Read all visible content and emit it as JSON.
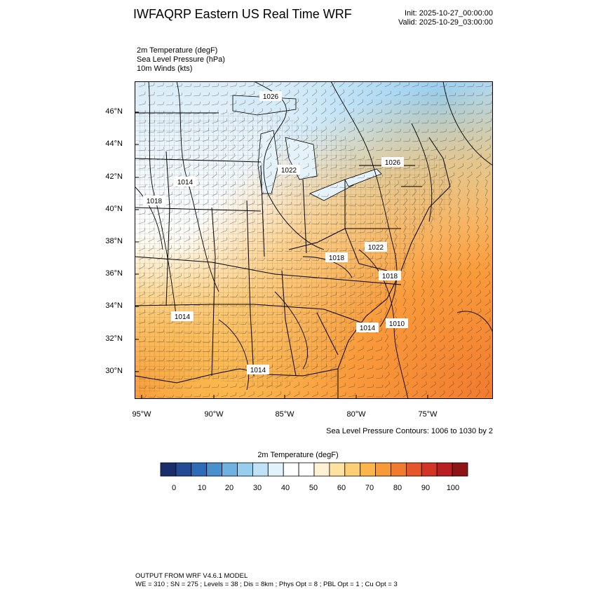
{
  "title": "IWFAQRP Eastern US Real Time WRF",
  "init": "Init: 2025-10-27_00:00:00",
  "valid": "Valid: 2025-10-29_03:00:00",
  "fields": {
    "line1": "2m Temperature   (degF)",
    "line2": "Sea Level Pressure   (hPa)",
    "line3": "10m Winds   (kts)"
  },
  "lat_labels": [
    "46°N",
    "44°N",
    "42°N",
    "40°N",
    "38°N",
    "36°N",
    "34°N",
    "32°N",
    "30°N"
  ],
  "lon_labels": [
    "95°W",
    "90°W",
    "85°W",
    "80°W",
    "75°W"
  ],
  "pressure_labels": [
    "1026",
    "1022",
    "1026",
    "1014",
    "1018",
    "1022",
    "1018",
    "1018",
    "1014",
    "1014",
    "1010",
    "1014"
  ],
  "contour_note": "Sea Level Pressure Contours: 1006 to 1030 by 2",
  "colorbar": {
    "title": "2m Temperature  (degF)",
    "labels": [
      "0",
      "10",
      "20",
      "30",
      "40",
      "50",
      "60",
      "70",
      "80",
      "90",
      "100"
    ],
    "colors": [
      "#1a2e6b",
      "#234c94",
      "#2f6cb8",
      "#4a90cc",
      "#6fb1e0",
      "#97cdef",
      "#bfe2f6",
      "#e2f2fb",
      "#ffffff",
      "#ffffff",
      "#fff2d4",
      "#ffe2a0",
      "#fccf76",
      "#fbb54a",
      "#f99a3a",
      "#f17a2e",
      "#e5562a",
      "#d23525",
      "#b81e22",
      "#8e1516"
    ]
  },
  "footer": {
    "line1": "OUTPUT FROM WRF V4.6.1 MODEL",
    "line2": "WE = 310 ; SN = 275 ; Levels = 38 ; Dis = 8km ; Phys Opt = 8 ; PBL Opt = 1 ; Cu Opt = 3"
  }
}
